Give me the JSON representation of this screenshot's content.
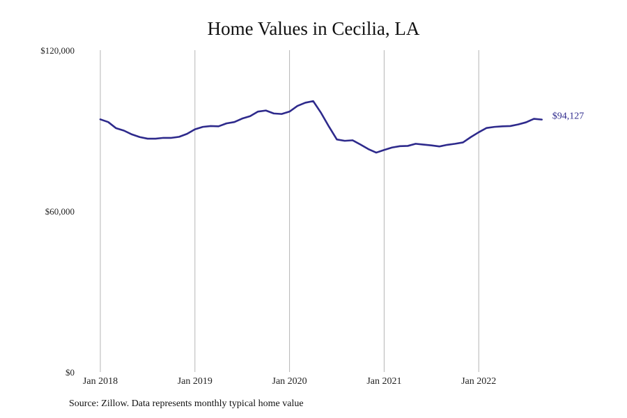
{
  "chart_data": {
    "type": "line",
    "title": "Home Values in Cecilia, LA",
    "xlabel": "",
    "ylabel": "",
    "ylim": [
      0,
      120000
    ],
    "yticks": [
      "$0",
      "$60,000",
      "$120,000"
    ],
    "ytick_values": [
      0,
      60000,
      120000
    ],
    "xticks": [
      "Jan 2018",
      "Jan 2019",
      "Jan 2020",
      "Jan 2021",
      "Jan 2022"
    ],
    "grid": "vertical lines at each January",
    "line_color": "#2e2a8c",
    "end_label": "$94,127",
    "series": [
      {
        "x": [
          "2018-01",
          "2018-02",
          "2018-03",
          "2018-04",
          "2018-05",
          "2018-06",
          "2018-07",
          "2018-08",
          "2018-09",
          "2018-10",
          "2018-11",
          "2018-12",
          "2019-01",
          "2019-02",
          "2019-03",
          "2019-04",
          "2019-05",
          "2019-06",
          "2019-07",
          "2019-08",
          "2019-09",
          "2019-10",
          "2019-11",
          "2019-12",
          "2020-01",
          "2020-02",
          "2020-03",
          "2020-04",
          "2020-05",
          "2020-06",
          "2020-07",
          "2020-08",
          "2020-09",
          "2020-10",
          "2020-11",
          "2020-12",
          "2021-01",
          "2021-02",
          "2021-03",
          "2021-04",
          "2021-05",
          "2021-06",
          "2021-07",
          "2021-08",
          "2021-09",
          "2021-10",
          "2021-11",
          "2021-12",
          "2022-01",
          "2022-02",
          "2022-03",
          "2022-04",
          "2022-05",
          "2022-06",
          "2022-07",
          "2022-08",
          "2022-09"
        ],
        "values": [
          94200,
          93200,
          90900,
          90000,
          88600,
          87600,
          87000,
          87000,
          87300,
          87300,
          87700,
          88800,
          90500,
          91400,
          91700,
          91600,
          92700,
          93200,
          94500,
          95400,
          97100,
          97500,
          96400,
          96200,
          97100,
          99200,
          100400,
          101000,
          96600,
          91500,
          86700,
          86200,
          86400,
          84800,
          83100,
          81800,
          82800,
          83700,
          84200,
          84300,
          85100,
          84800,
          84500,
          84100,
          84700,
          85100,
          85600,
          87600,
          89400,
          91000,
          91400,
          91600,
          91700,
          92300,
          93100,
          94400,
          94127
        ]
      }
    ]
  },
  "source_note": "Source: Zillow. Data represents monthly typical home value"
}
